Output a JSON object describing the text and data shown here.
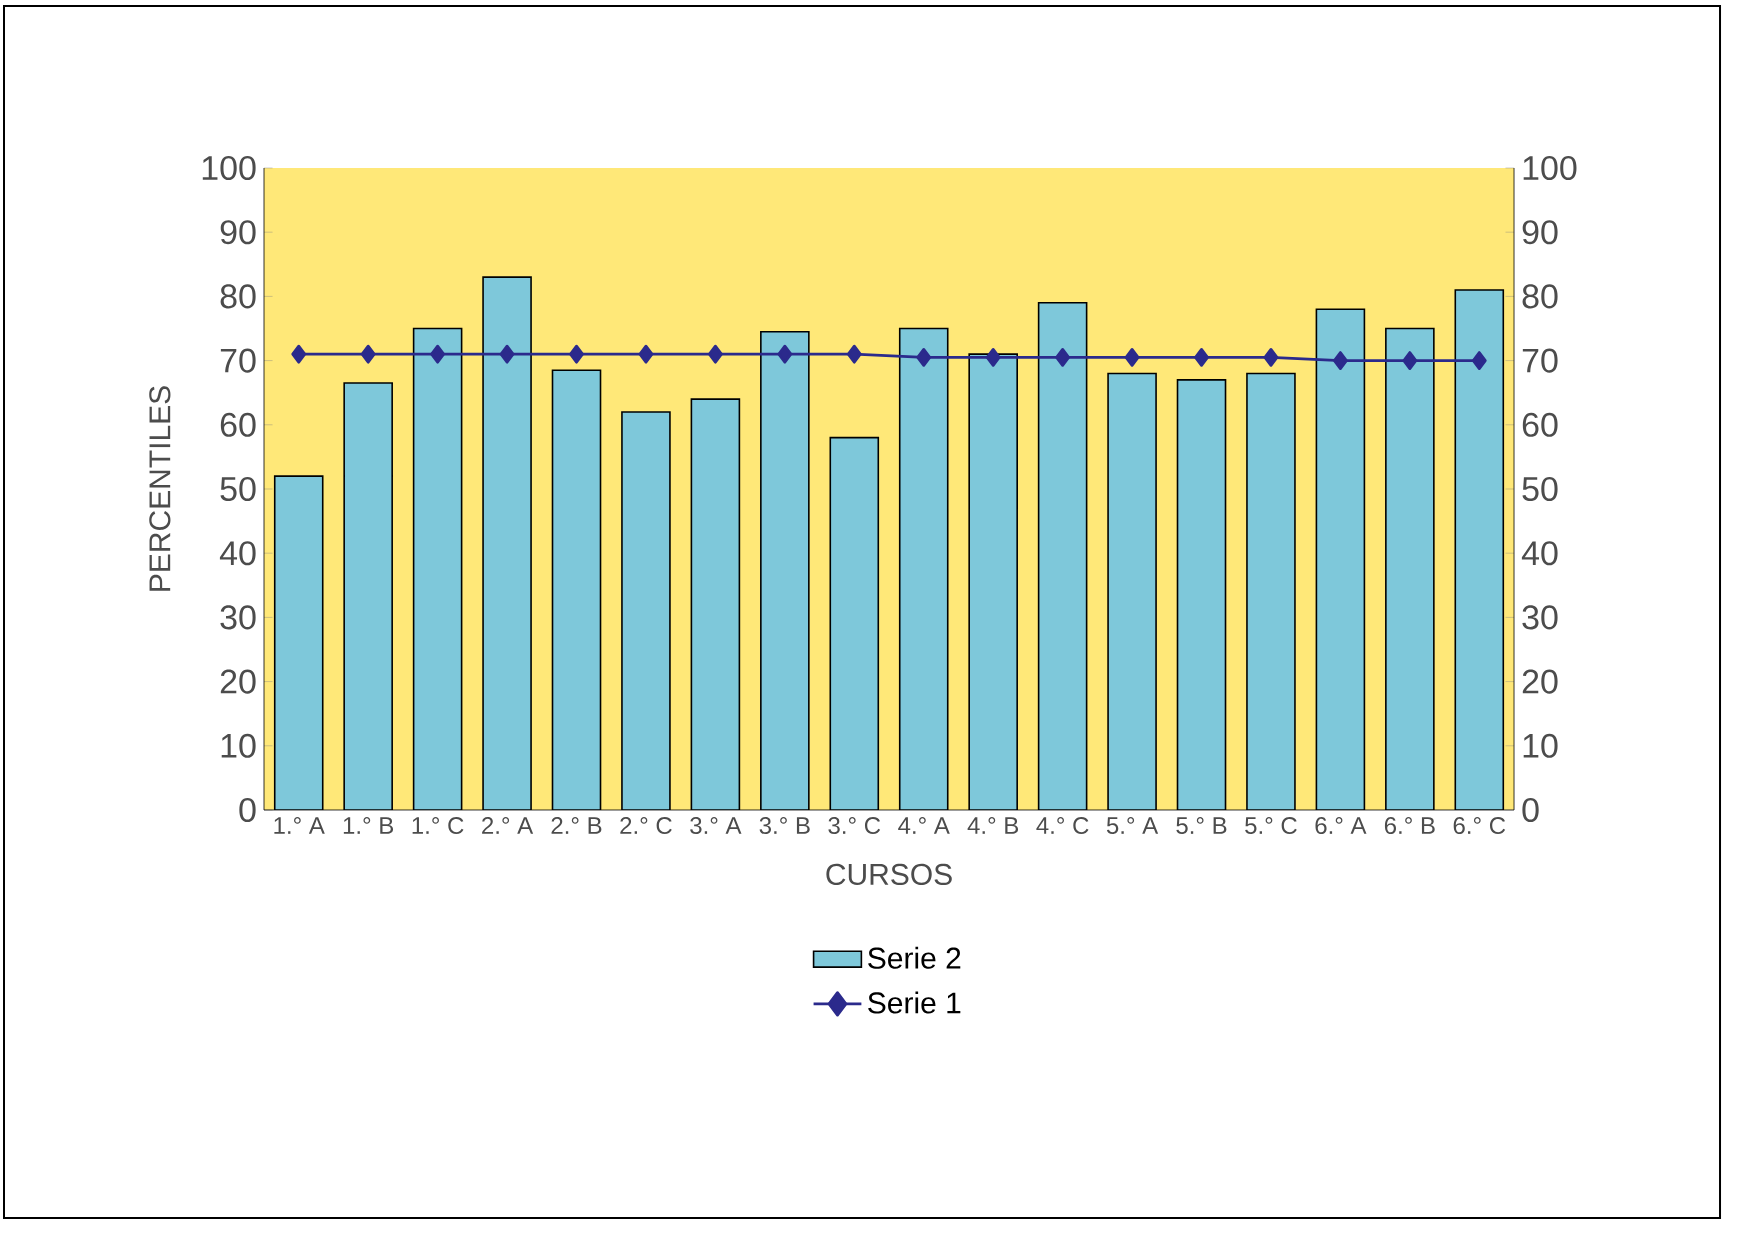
{
  "chart_data": {
    "type": "bar",
    "xlabel": "CURSOS",
    "ylabel": "PERCENTILES",
    "categories": [
      "1.° A",
      "1.° B",
      "1.° C",
      "2.° A",
      "2.° B",
      "2.° C",
      "3.° A",
      "3.° B",
      "3.° C",
      "4.° A",
      "4.° B",
      "4.° C",
      "5.° A",
      "5.° B",
      "5.° C",
      "6.° A",
      "6.° B",
      "6.° C"
    ],
    "series": [
      {
        "name": "Serie 2",
        "color": "#7ec8da",
        "values": [
          52,
          66.5,
          75,
          83,
          68.5,
          62,
          64,
          74.5,
          58,
          75,
          71,
          79,
          68,
          67,
          68,
          78,
          75,
          81
        ]
      },
      {
        "name": "Serie 1",
        "type": "line",
        "color": "#2b2a8c",
        "marker": "diamond",
        "values": [
          71,
          71,
          71,
          71,
          71,
          71,
          71,
          71,
          71,
          70.5,
          70.5,
          70.5,
          70.5,
          70.5,
          70.5,
          70,
          70,
          70
        ]
      }
    ],
    "ylim": [
      0,
      100
    ],
    "yticks": [
      0,
      10,
      20,
      30,
      40,
      50,
      60,
      70,
      80,
      90,
      100
    ],
    "y2lim": [
      0,
      100
    ],
    "y2ticks": [
      0,
      10,
      20,
      30,
      40,
      50,
      60,
      70,
      80,
      90,
      100
    ],
    "legend": "bottom",
    "grid": false
  }
}
